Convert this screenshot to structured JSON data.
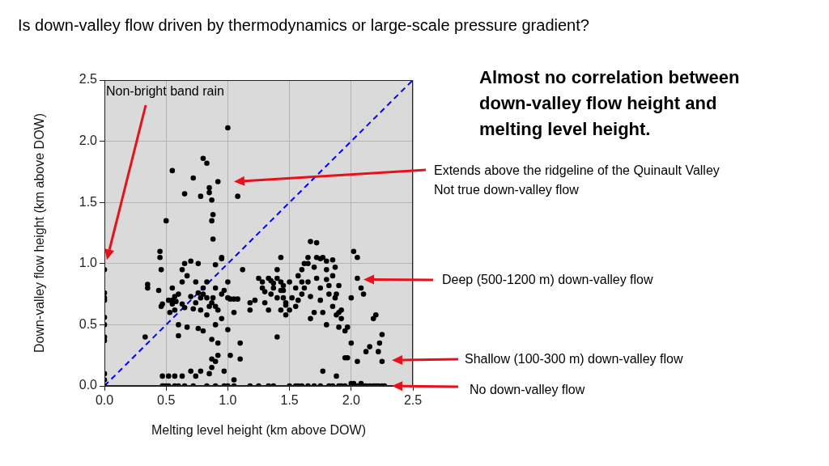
{
  "chart_data": {
    "type": "scatter",
    "title": "Is down-valley flow driven by thermodynamics or large-scale pressure gradient?",
    "x_label": "Melting level height (km above DOW)",
    "y_label": "Down-valley flow height (km above DOW)",
    "xlim": [
      0,
      2.5
    ],
    "ylim": [
      0,
      2.5
    ],
    "xticks": [
      {
        "value": 0,
        "label": "0.0"
      },
      {
        "value": 0.5,
        "label": "0.5"
      },
      {
        "value": 1,
        "label": "1.0"
      },
      {
        "value": 1.5,
        "label": "1.5"
      },
      {
        "value": 2,
        "label": "2.0"
      },
      {
        "value": 2.5,
        "label": "2.5"
      }
    ],
    "yticks": [
      {
        "value": 0,
        "label": "0.0"
      },
      {
        "value": 0.5,
        "label": "0.5"
      },
      {
        "value": 1,
        "label": "1.0"
      },
      {
        "value": 1.5,
        "label": "1.5"
      },
      {
        "value": 2,
        "label": "2.0"
      },
      {
        "value": 2.5,
        "label": "2.5"
      }
    ],
    "grid": true,
    "series": [
      {
        "type": "scatter",
        "color": "#000000",
        "marker": "circle",
        "points": [
          [
            0,
            0.95
          ],
          [
            0,
            0.76
          ],
          [
            0,
            0.72
          ],
          [
            0,
            0.7
          ],
          [
            0,
            0.56
          ],
          [
            0,
            0.5
          ],
          [
            0,
            0.4
          ],
          [
            0,
            0.37
          ],
          [
            0,
            0.1
          ],
          [
            0,
            0.05
          ],
          [
            0,
            0.0
          ],
          [
            0.33,
            0.4
          ],
          [
            0.35,
            0.83
          ],
          [
            0.35,
            0.8
          ],
          [
            0.44,
            0.78
          ],
          [
            0.45,
            1.1
          ],
          [
            0.45,
            1.05
          ],
          [
            0.46,
            0.95
          ],
          [
            0.46,
            0.65
          ],
          [
            0.47,
            0.67
          ],
          [
            0.47,
            0.08
          ],
          [
            0.47,
            0.0
          ],
          [
            0.48,
            0.0
          ],
          [
            0.5,
            1.35
          ],
          [
            0.5,
            0.0
          ],
          [
            0.52,
            0.7
          ],
          [
            0.52,
            0.0
          ],
          [
            0.52,
            0.08
          ],
          [
            0.53,
            0.6
          ],
          [
            0.55,
            1.76
          ],
          [
            0.55,
            0.8
          ],
          [
            0.55,
            0.7
          ],
          [
            0.55,
            0.67
          ],
          [
            0.57,
            0.73
          ],
          [
            0.57,
            0.62
          ],
          [
            0.57,
            0.08
          ],
          [
            0.57,
            0.0
          ],
          [
            0.58,
            0.69
          ],
          [
            0.6,
            0.75
          ],
          [
            0.6,
            0.5
          ],
          [
            0.6,
            0.41
          ],
          [
            0.6,
            0.0
          ],
          [
            0.63,
            0.95
          ],
          [
            0.63,
            0.85
          ],
          [
            0.63,
            0.67
          ],
          [
            0.63,
            0.08
          ],
          [
            0.65,
            1.57
          ],
          [
            0.65,
            1.0
          ],
          [
            0.65,
            0.64
          ],
          [
            0.65,
            0.0
          ],
          [
            0.67,
            0.9
          ],
          [
            0.67,
            0.48
          ],
          [
            0.7,
            1.02
          ],
          [
            0.7,
            0.73
          ],
          [
            0.7,
            0.12
          ],
          [
            0.72,
            1.7
          ],
          [
            0.72,
            0.63
          ],
          [
            0.72,
            0.0
          ],
          [
            0.74,
            0.85
          ],
          [
            0.74,
            0.68
          ],
          [
            0.74,
            0.08
          ],
          [
            0.76,
            1.0
          ],
          [
            0.76,
            0.76
          ],
          [
            0.76,
            0.47
          ],
          [
            0.78,
            1.55
          ],
          [
            0.78,
            0.72
          ],
          [
            0.78,
            0.62
          ],
          [
            0.78,
            0.12
          ],
          [
            0.8,
            1.86
          ],
          [
            0.8,
            0.8
          ],
          [
            0.8,
            0.75
          ],
          [
            0.8,
            0.45
          ],
          [
            0.83,
            1.82
          ],
          [
            0.83,
            0.72
          ],
          [
            0.83,
            0.85
          ],
          [
            0.83,
            0.58
          ],
          [
            0.83,
            0.0
          ],
          [
            0.85,
            1.62
          ],
          [
            0.85,
            1.58
          ],
          [
            0.85,
            0.65
          ],
          [
            0.85,
            0.1
          ],
          [
            0.87,
            1.52
          ],
          [
            0.87,
            1.35
          ],
          [
            0.87,
            0.68
          ],
          [
            0.87,
            0.38
          ],
          [
            0.87,
            0.22
          ],
          [
            0.87,
            0.15
          ],
          [
            0.88,
            1.4
          ],
          [
            0.88,
            1.2
          ],
          [
            0.88,
            0.72
          ],
          [
            0.9,
            0.99
          ],
          [
            0.9,
            0.8
          ],
          [
            0.9,
            0.65
          ],
          [
            0.9,
            0.5
          ],
          [
            0.9,
            0.2
          ],
          [
            0.9,
            0.0
          ],
          [
            0.92,
            1.67
          ],
          [
            0.92,
            0.62
          ],
          [
            0.92,
            0.35
          ],
          [
            0.92,
            0.25
          ],
          [
            0.95,
            1.05
          ],
          [
            0.95,
            1.04
          ],
          [
            0.95,
            0.75
          ],
          [
            0.95,
            0.55
          ],
          [
            0.97,
            0.78
          ],
          [
            0.97,
            0.12
          ],
          [
            0.97,
            0.0
          ],
          [
            1.0,
            2.11
          ],
          [
            1.0,
            0.85
          ],
          [
            1.0,
            0.72
          ],
          [
            1.0,
            0.46
          ],
          [
            1.0,
            0.0
          ],
          [
            1.02,
            0.71
          ],
          [
            1.02,
            0.25
          ],
          [
            1.05,
            0.71
          ],
          [
            1.05,
            0.6
          ],
          [
            1.05,
            0.05
          ],
          [
            1.05,
            0.0
          ],
          [
            1.08,
            1.55
          ],
          [
            1.08,
            0.71
          ],
          [
            1.1,
            0.35
          ],
          [
            1.1,
            0.22
          ],
          [
            1.12,
            0.95
          ],
          [
            1.18,
            0.68
          ],
          [
            1.18,
            0.62
          ],
          [
            1.18,
            0.0
          ],
          [
            1.22,
            0.7
          ],
          [
            1.25,
            0.88
          ],
          [
            1.25,
            0.0
          ],
          [
            1.28,
            0.85
          ],
          [
            1.28,
            0.8
          ],
          [
            1.3,
            0.77
          ],
          [
            1.3,
            0.68
          ],
          [
            1.33,
            0.88
          ],
          [
            1.33,
            0.62
          ],
          [
            1.33,
            0.0
          ],
          [
            1.35,
            0.75
          ],
          [
            1.35,
            0.86
          ],
          [
            1.37,
            0.84
          ],
          [
            1.37,
            0.8
          ],
          [
            1.37,
            0.0
          ],
          [
            1.4,
            0.72
          ],
          [
            1.4,
            0.95
          ],
          [
            1.4,
            0.88
          ],
          [
            1.4,
            0.4
          ],
          [
            1.43,
            1.05
          ],
          [
            1.43,
            0.85
          ],
          [
            1.43,
            0.78
          ],
          [
            1.43,
            0.62
          ],
          [
            1.45,
            0.78
          ],
          [
            1.45,
            0.72
          ],
          [
            1.45,
            0.82
          ],
          [
            1.47,
            0.58
          ],
          [
            1.47,
            0.66
          ],
          [
            1.47,
            0.68
          ],
          [
            1.5,
            0.85
          ],
          [
            1.5,
            0.62
          ],
          [
            1.5,
            0.0
          ],
          [
            1.52,
            0.72
          ],
          [
            1.55,
            0.8
          ],
          [
            1.55,
            0.65
          ],
          [
            1.55,
            0.0
          ],
          [
            1.57,
            0.9
          ],
          [
            1.57,
            0.7
          ],
          [
            1.57,
            0.0
          ],
          [
            1.6,
            0.95
          ],
          [
            1.6,
            0.85
          ],
          [
            1.6,
            0.75
          ],
          [
            1.6,
            0.0
          ],
          [
            1.62,
            1.0
          ],
          [
            1.62,
            0.8
          ],
          [
            1.65,
            1.05
          ],
          [
            1.65,
            1.0
          ],
          [
            1.65,
            0.85
          ],
          [
            1.65,
            0.0
          ],
          [
            1.67,
            1.18
          ],
          [
            1.67,
            0.73
          ],
          [
            1.67,
            0.55
          ],
          [
            1.7,
            0.97
          ],
          [
            1.7,
            0.6
          ],
          [
            1.7,
            0.0
          ],
          [
            1.72,
            1.17
          ],
          [
            1.72,
            1.05
          ],
          [
            1.72,
            0.88
          ],
          [
            1.75,
            1.04
          ],
          [
            1.75,
            0.8
          ],
          [
            1.75,
            0.7
          ],
          [
            1.75,
            0.0
          ],
          [
            1.77,
            1.05
          ],
          [
            1.77,
            0.6
          ],
          [
            1.77,
            0.12
          ],
          [
            1.8,
            1.02
          ],
          [
            1.8,
            0.95
          ],
          [
            1.8,
            0.87
          ],
          [
            1.8,
            0.5
          ],
          [
            1.82,
            0.82
          ],
          [
            1.82,
            0.75
          ],
          [
            1.82,
            0.0
          ],
          [
            1.85,
            1.03
          ],
          [
            1.85,
            0.9
          ],
          [
            1.85,
            0.65
          ],
          [
            1.85,
            0.0
          ],
          [
            1.87,
            0.97
          ],
          [
            1.87,
            0.72
          ],
          [
            1.88,
            0.75
          ],
          [
            1.88,
            0.58
          ],
          [
            1.88,
            0.08
          ],
          [
            1.9,
            0.82
          ],
          [
            1.9,
            0.6
          ],
          [
            1.9,
            0.48
          ],
          [
            1.9,
            0.0
          ],
          [
            1.92,
            0.62
          ],
          [
            1.92,
            0.55
          ],
          [
            1.92,
            0.0
          ],
          [
            1.95,
            0.45
          ],
          [
            1.95,
            0.23
          ],
          [
            1.95,
            0.0
          ],
          [
            1.97,
            0.48
          ],
          [
            1.97,
            0.23
          ],
          [
            2.0,
            0.72
          ],
          [
            2.0,
            0.35
          ],
          [
            2.0,
            0.02
          ],
          [
            2.0,
            0.0
          ],
          [
            2.02,
            1.1
          ],
          [
            2.02,
            0.02
          ],
          [
            2.02,
            0.0
          ],
          [
            2.05,
            1.05
          ],
          [
            2.05,
            0.88
          ],
          [
            2.05,
            0.2
          ],
          [
            2.05,
            0.0
          ],
          [
            2.08,
            0.8
          ],
          [
            2.08,
            0.02
          ],
          [
            2.08,
            0.0
          ],
          [
            2.1,
            0.75
          ],
          [
            2.1,
            0.0
          ],
          [
            2.12,
            0.28
          ],
          [
            2.12,
            0.0
          ],
          [
            2.15,
            0.32
          ],
          [
            2.15,
            0.0
          ],
          [
            2.18,
            0.55
          ],
          [
            2.18,
            0.0
          ],
          [
            2.2,
            0.58
          ],
          [
            2.2,
            0.0
          ],
          [
            2.22,
            0.28
          ],
          [
            2.22,
            0.0
          ],
          [
            2.23,
            0.35
          ],
          [
            2.25,
            0.42
          ],
          [
            2.25,
            0.2
          ],
          [
            2.25,
            0.0
          ],
          [
            2.27,
            0.0
          ]
        ]
      },
      {
        "type": "line",
        "color": "#0000ff",
        "line_style": "dashed",
        "points": [
          [
            0,
            0
          ],
          [
            2.5,
            2.5
          ]
        ]
      }
    ],
    "annotations": [
      {
        "text": [
          "Almost no correlation between",
          "down-valley flow height and",
          "melting level height."
        ]
      },
      {
        "text": [
          "Non-bright band rain"
        ],
        "points_to": [
          0.02,
          1.03
        ]
      },
      {
        "text": [
          "Extends above the ridgeline of the Quinault Valley",
          "Not true down-valley flow"
        ],
        "points_to": [
          1.05,
          1.67
        ]
      },
      {
        "text": [
          "Deep (500-1200 m) down-valley flow"
        ],
        "points_to": [
          2.1,
          0.87
        ]
      },
      {
        "text": [
          "Shallow (100-300 m) down-valley flow"
        ],
        "points_to": [
          2.33,
          0.21
        ]
      },
      {
        "text": [
          "No down-valley flow"
        ],
        "points_to": [
          2.33,
          0.0
        ]
      }
    ]
  }
}
